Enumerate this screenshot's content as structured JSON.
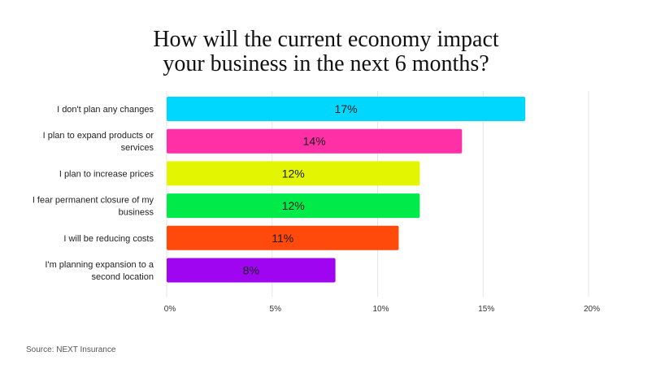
{
  "title_lines": [
    "How will the current economy impact",
    "your business in the next 6 months?"
  ],
  "source": "Source: NEXT Insurance",
  "chart_data": {
    "type": "bar",
    "orientation": "horizontal",
    "title": "How will the current economy impact your business in the next 6 months?",
    "categories": [
      [
        "I don't plan any changes"
      ],
      [
        "I plan to expand products or",
        "services"
      ],
      [
        "I plan to increase prices"
      ],
      [
        "I fear permanent closure of my",
        "business"
      ],
      [
        "I will be reducing costs"
      ],
      [
        "I'm planning expansion to a",
        "second location"
      ]
    ],
    "values": [
      17,
      14,
      12,
      12,
      11,
      8
    ],
    "value_labels": [
      "17%",
      "14%",
      "12%",
      "12%",
      "11%",
      "8%"
    ],
    "colors": [
      "#00d7ff",
      "#ff2fa6",
      "#e3f500",
      "#00eb4a",
      "#ff4a0b",
      "#9f05f0"
    ],
    "xlim": [
      0,
      20
    ],
    "xticks": [
      0,
      5,
      10,
      15,
      20
    ],
    "xtick_labels": [
      "0%",
      "5%",
      "10%",
      "15%",
      "20%"
    ],
    "grid": "vertical"
  }
}
